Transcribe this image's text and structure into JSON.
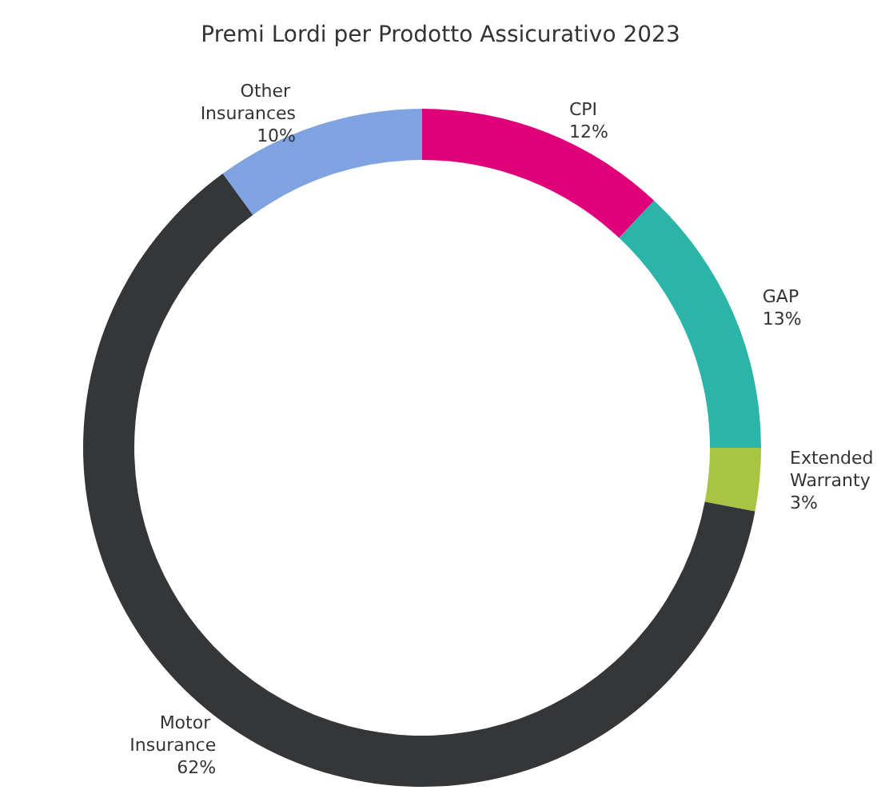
{
  "chart_data": {
    "type": "donut",
    "title": "Premi Lordi per Prodotto Assicurativo 2023",
    "categories": [
      "CPI",
      "GAP",
      "Extended Warranty",
      "Motor Insurance",
      "Other Insurances"
    ],
    "values": [
      12,
      13,
      3,
      62,
      10
    ],
    "colors": [
      "#e0007a",
      "#2ab5a8",
      "#a9c443",
      "#353638",
      "#7fa2e0"
    ],
    "value_labels": [
      "12%",
      "13%",
      "3%",
      "62%",
      "10%"
    ],
    "legend": false
  }
}
